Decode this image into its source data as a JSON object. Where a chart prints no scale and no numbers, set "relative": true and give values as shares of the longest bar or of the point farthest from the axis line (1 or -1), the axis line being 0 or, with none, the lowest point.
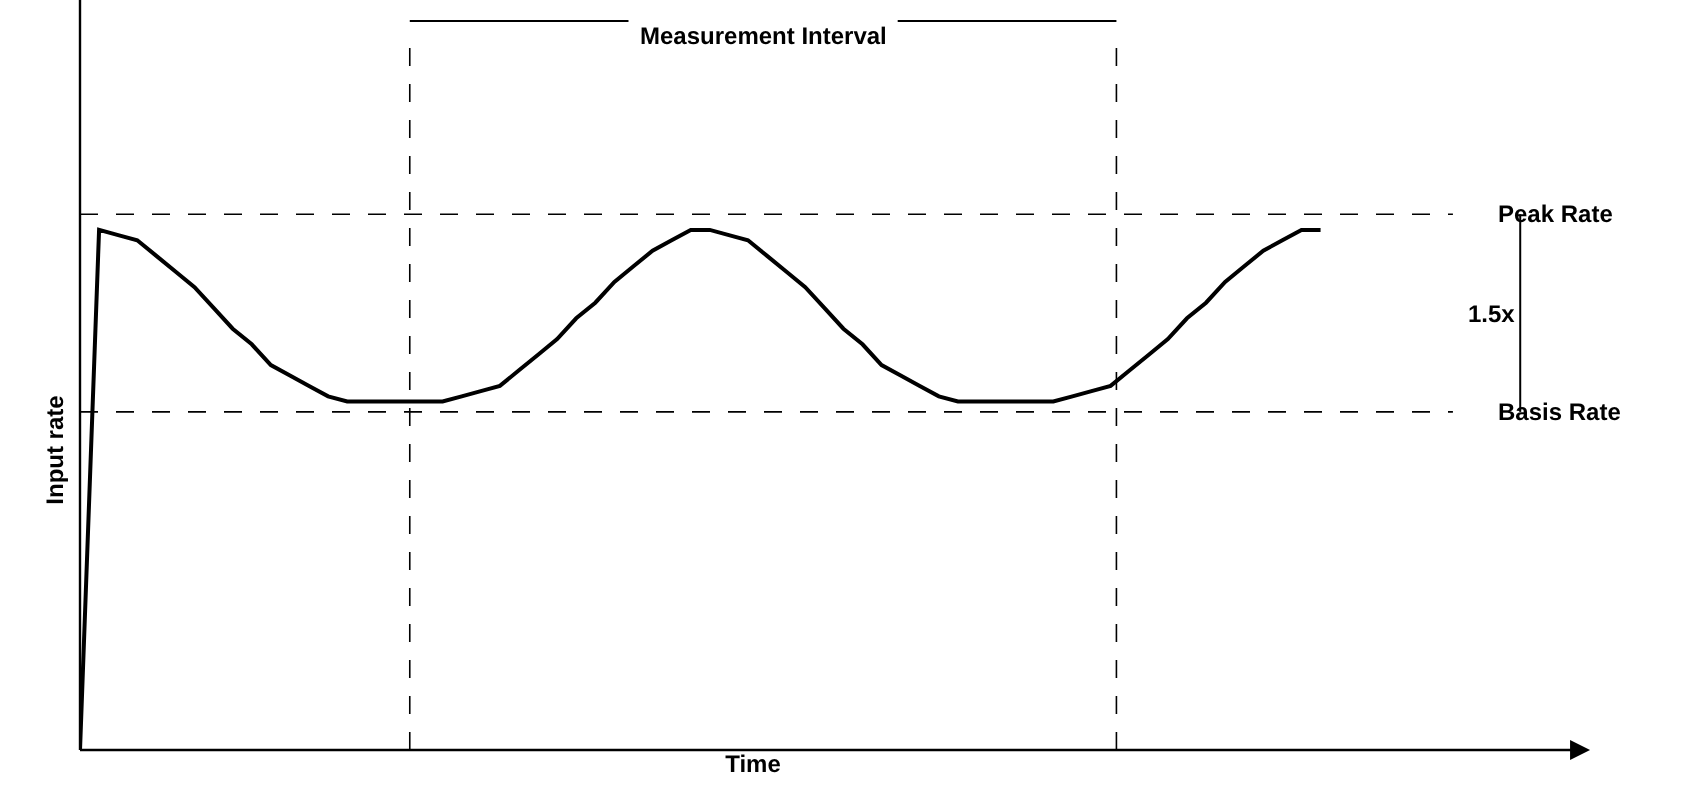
{
  "chart_data": {
    "type": "line",
    "relative": true,
    "xlabel": "Time",
    "ylabel": "Input rate",
    "categories": [
      null,
      null,
      null,
      null,
      null,
      null,
      null,
      null,
      null,
      null,
      null,
      null,
      null,
      null,
      null,
      null,
      null,
      null,
      null,
      null,
      null,
      null,
      null,
      null,
      null,
      null,
      null,
      null,
      null,
      null,
      null,
      null,
      null,
      null,
      null,
      null,
      null,
      null,
      null,
      null,
      null,
      null,
      null,
      null,
      null,
      null,
      null,
      null,
      null,
      null,
      null,
      null,
      null,
      null,
      null,
      null,
      null,
      null,
      null,
      null,
      null,
      null,
      null,
      null,
      null,
      null
    ],
    "series": [
      {
        "color": "#000000",
        "values": [
          0,
          1.0,
          0.99,
          0.98,
          0.95,
          0.92,
          0.89,
          0.85,
          0.81,
          0.78,
          0.74,
          0.72,
          0.7,
          0.68,
          0.67,
          0.67,
          0.67,
          0.67,
          0.67,
          0.67,
          0.68,
          0.69,
          0.7,
          0.73,
          0.76,
          0.79,
          0.83,
          0.86,
          0.9,
          0.93,
          0.96,
          0.98,
          1.0,
          1.0,
          0.99,
          0.98,
          0.95,
          0.92,
          0.89,
          0.85,
          0.81,
          0.78,
          0.74,
          0.72,
          0.7,
          0.68,
          0.67,
          0.67,
          0.67,
          0.67,
          0.67,
          0.67,
          0.68,
          0.69,
          0.7,
          0.73,
          0.76,
          0.79,
          0.83,
          0.86,
          0.9,
          0.93,
          0.96,
          0.98,
          1.0,
          1.0
        ]
      }
    ],
    "ref_lines": [
      {
        "axis": "y",
        "value": 1.03,
        "label": "Peak Rate",
        "line_style": "dashed"
      },
      {
        "axis": "y",
        "value": 0.65,
        "label": "Basis Rate",
        "line_style": "dashed"
      }
    ],
    "annotations": [
      "Measurement Interval",
      "1.5x"
    ]
  }
}
